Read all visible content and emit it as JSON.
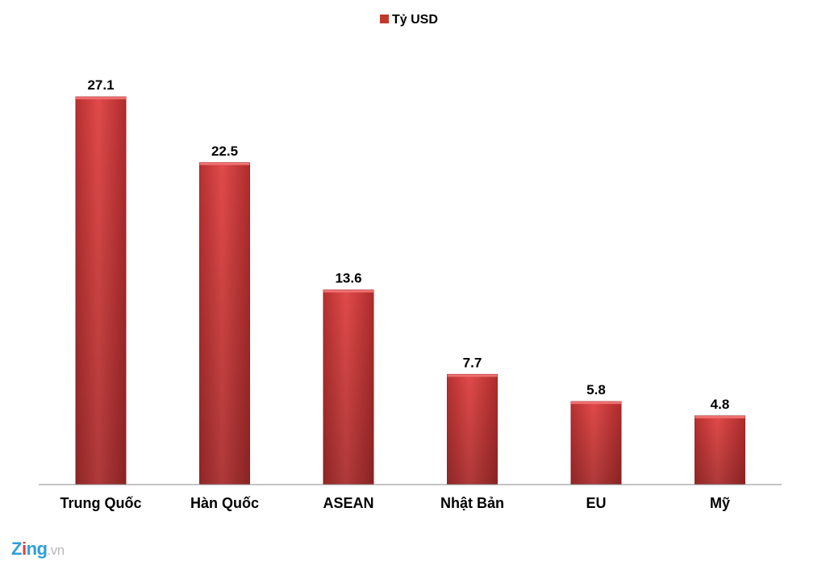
{
  "chart_data": {
    "type": "bar",
    "categories": [
      "Trung Quốc",
      "Hàn Quốc",
      "ASEAN",
      "Nhật Bản",
      "EU",
      "Mỹ"
    ],
    "series": [
      {
        "name": "Tỷ USD",
        "values": [
          27.1,
          22.5,
          13.6,
          7.7,
          5.8,
          4.8
        ]
      }
    ],
    "data_labels": [
      "27.1",
      "22.5",
      "13.6",
      "7.7",
      "5.8",
      "4.8"
    ],
    "title": "",
    "xlabel": "",
    "ylabel": "",
    "ylim": [
      0,
      28.8
    ],
    "grid": false,
    "legend_placement": "top-center",
    "colors": {
      "bar": "#d64040",
      "bar_light": "#e55454",
      "bar_dark": "#a82a2a",
      "legend_swatch": "#c0392b",
      "axis": "#888888"
    }
  },
  "logo": {
    "text_z": "Z",
    "text_i": "i",
    "text_ng": "ng",
    "text_vn": ".vn"
  }
}
